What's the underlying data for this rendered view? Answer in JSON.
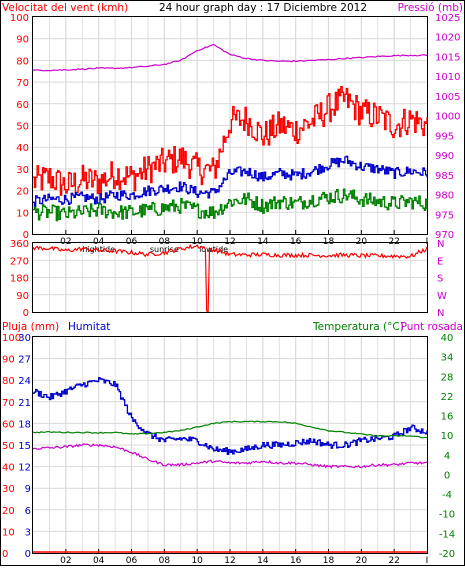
{
  "header": {
    "title": "24 hour graph day : 17 Diciembre 2012",
    "left_label": "Velocitat del vent (kmh)",
    "right_label": "Pressió (mb)"
  },
  "bottom_header": {
    "left1": "Pluja (mm)",
    "left2": "Humitat",
    "right1": "Temperatura (°C)",
    "right2": "Punt rosada"
  },
  "colors": {
    "wind_gust": "#ff0000",
    "wind_avg": "#0000cc",
    "wind_low": "#008000",
    "pressure": "#cc00cc",
    "direction": "#ff0000",
    "humidity": "#0000cc",
    "temperature": "#008000",
    "dewpoint": "#cc00cc",
    "rain": "#ff0000"
  },
  "chart_data": [
    {
      "type": "line",
      "panel": "wind-pressure",
      "title": "24 hour graph day : 17 Diciembre 2012",
      "ylabel": "Velocitat del vent (kmh)",
      "y2label": "Pressió (mb)",
      "ylim": [
        0,
        100
      ],
      "y2lim": [
        970,
        1025
      ],
      "yticks": [
        "0",
        "10",
        "20",
        "30",
        "40",
        "50",
        "60",
        "70",
        "80",
        "90",
        "100"
      ],
      "y2ticks": [
        "970",
        "975",
        "980",
        "985",
        "990",
        "995",
        "1000",
        "1005",
        "1010",
        "1015",
        "1020",
        "1025"
      ],
      "xticks": [
        "02",
        "04",
        "06",
        "08",
        "10",
        "12",
        "14",
        "16",
        "18",
        "20",
        "22"
      ],
      "xmarkers": [
        {
          "label": "hightide",
          "hour": 4
        },
        {
          "label": "sunrise",
          "hour": 8
        },
        {
          "label": "lowtide",
          "hour": 11
        }
      ],
      "x": [
        0,
        1,
        2,
        3,
        4,
        5,
        6,
        7,
        8,
        9,
        10,
        11,
        12,
        13,
        14,
        15,
        16,
        17,
        18,
        19,
        20,
        21,
        22,
        23,
        24
      ],
      "series": [
        {
          "key": "gust",
          "values": [
            24,
            26,
            22,
            25,
            24,
            28,
            26,
            30,
            33,
            35,
            30,
            29,
            52,
            53,
            45,
            50,
            48,
            52,
            58,
            62,
            56,
            54,
            50,
            53,
            50
          ]
        },
        {
          "key": "avg",
          "values": [
            15,
            16,
            16,
            17,
            16,
            18,
            18,
            20,
            21,
            22,
            19,
            19,
            28,
            29,
            26,
            28,
            27,
            29,
            32,
            34,
            31,
            30,
            28,
            29,
            28
          ]
        },
        {
          "key": "low",
          "values": [
            10,
            10,
            9,
            10,
            11,
            10,
            10,
            11,
            12,
            13,
            11,
            10,
            15,
            16,
            13,
            15,
            14,
            16,
            17,
            18,
            16,
            15,
            14,
            15,
            14
          ]
        },
        {
          "key": "pressure",
          "axis": "y2",
          "values": [
            1011.5,
            1011.5,
            1011.6,
            1011.8,
            1012.0,
            1012.0,
            1012.2,
            1012.5,
            1013.0,
            1014.0,
            1016.5,
            1018.0,
            1015.5,
            1014.5,
            1014.0,
            1013.8,
            1013.8,
            1014.0,
            1014.2,
            1014.5,
            1014.7,
            1015.0,
            1015.2,
            1015.3,
            1015.3
          ]
        }
      ]
    },
    {
      "type": "line",
      "panel": "wind-direction",
      "ylim": [
        0,
        360
      ],
      "yticks": [
        "0",
        "90",
        "180",
        "270",
        "360"
      ],
      "compass": [
        "N",
        "W",
        "S",
        "E",
        "N"
      ],
      "x": [
        0,
        1,
        2,
        3,
        4,
        5,
        6,
        7,
        8,
        9,
        10,
        11,
        12,
        13,
        14,
        15,
        16,
        17,
        18,
        19,
        20,
        21,
        22,
        23,
        24
      ],
      "series": [
        {
          "key": "direction",
          "values": [
            335,
            332,
            320,
            330,
            322,
            318,
            310,
            300,
            310,
            330,
            345,
            325,
            300,
            298,
            300,
            297,
            297,
            296,
            295,
            297,
            294,
            293,
            292,
            290,
            330
          ]
        }
      ],
      "dips": [
        {
          "hour": 10.55,
          "value": 5
        },
        {
          "hour": 10.7,
          "value": 3
        }
      ]
    },
    {
      "type": "line",
      "panel": "humidity-temperature",
      "ylabel": "Pluja (mm)",
      "y2label": "Temperatura (°C)",
      "ylim": [
        0,
        100
      ],
      "yticks_humidity": [
        "0",
        "10",
        "20",
        "30",
        "40",
        "50",
        "60",
        "70",
        "80",
        "90",
        "100"
      ],
      "yticks_rain": [
        "0",
        "3",
        "6",
        "9",
        "12",
        "15",
        "18",
        "21",
        "24",
        "27",
        "30"
      ],
      "y2lim": [
        -20,
        40
      ],
      "y2ticks": [
        "-20",
        "-14",
        "-10",
        "-4",
        "0",
        "4",
        "10",
        "16",
        "22",
        "28",
        "34",
        "40"
      ],
      "xticks": [
        "02",
        "04",
        "06",
        "08",
        "10",
        "12",
        "14",
        "16",
        "18",
        "20",
        "22"
      ],
      "xmarkers": [
        {
          "label": "hightide",
          "hour": 4
        },
        {
          "label": "sunrise",
          "hour": 8
        },
        {
          "label": "lowtide",
          "hour": 11
        }
      ],
      "x": [
        0,
        1,
        2,
        3,
        4,
        5,
        6,
        7,
        8,
        9,
        10,
        11,
        12,
        13,
        14,
        15,
        16,
        17,
        18,
        19,
        20,
        21,
        22,
        23,
        24
      ],
      "series": [
        {
          "key": "humidity",
          "values": [
            75,
            72,
            75,
            78,
            80,
            78,
            62,
            55,
            52,
            53,
            52,
            48,
            47,
            48,
            50,
            50,
            51,
            52,
            50,
            50,
            52,
            53,
            54,
            58,
            56
          ]
        },
        {
          "key": "temperature",
          "axis": "y2",
          "values": [
            13.5,
            13.6,
            13.5,
            13.5,
            13.4,
            13.5,
            13.0,
            13.2,
            13.5,
            14.0,
            15.0,
            16.0,
            16.5,
            16.5,
            16.5,
            16.5,
            16.0,
            15.0,
            14.0,
            13.5,
            13.0,
            12.5,
            12.5,
            12.5,
            12.0
          ]
        },
        {
          "key": "dewpoint",
          "axis": "y2",
          "values": [
            9.0,
            9.2,
            9.5,
            10.0,
            10.0,
            9.5,
            8.0,
            6.0,
            4.5,
            4.5,
            5.0,
            5.5,
            5.0,
            5.0,
            5.5,
            5.0,
            5.0,
            4.5,
            4.0,
            4.0,
            4.0,
            4.5,
            4.5,
            5.0,
            5.0
          ]
        },
        {
          "key": "rain",
          "values": [
            0,
            0,
            0,
            0,
            0,
            0,
            0,
            0,
            0,
            0,
            0,
            0,
            0,
            0,
            0,
            0,
            0,
            0,
            0,
            0,
            0,
            0,
            0,
            0,
            0
          ]
        }
      ]
    }
  ]
}
